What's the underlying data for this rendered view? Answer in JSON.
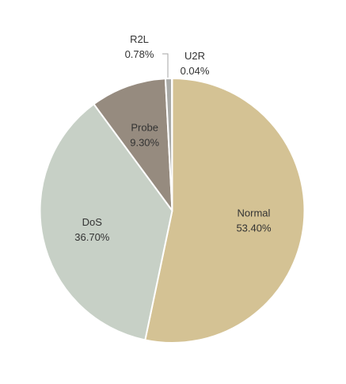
{
  "chart_data": {
    "type": "pie",
    "title": "",
    "slices": [
      {
        "label": "Normal",
        "value": 53.4,
        "display": "53.40%",
        "color": "#d4c294"
      },
      {
        "label": "DoS",
        "value": 36.7,
        "display": "36.70%",
        "color": "#c7d0c6"
      },
      {
        "label": "Probe",
        "value": 9.3,
        "display": "9.30%",
        "color": "#968b7f"
      },
      {
        "label": "R2L",
        "value": 0.78,
        "display": "0.78%",
        "color": "#a9aaa7"
      },
      {
        "label": "U2R",
        "value": 0.04,
        "display": "0.04%",
        "color": "#d9d3b7"
      }
    ],
    "start_angle": "12 o'clock",
    "direction": "clockwise",
    "legend": "none",
    "slice_border_color": "#ffffff"
  }
}
